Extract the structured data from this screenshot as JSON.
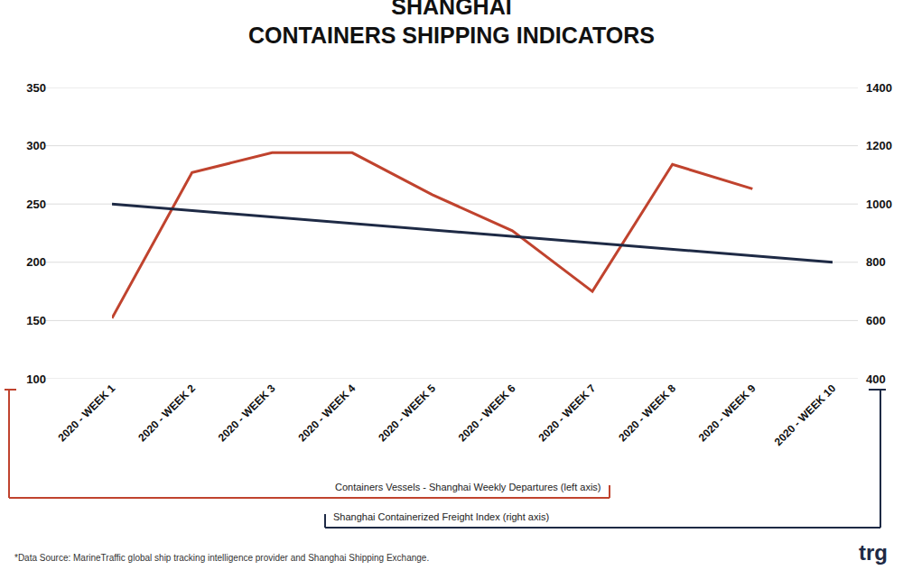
{
  "chart_data": {
    "type": "line",
    "title": "SHANGHAI\nCONTAINERS SHIPPING INDICATORS",
    "categories": [
      "2020 - WEEK 1",
      "2020 - WEEK 2",
      "2020 - WEEK 3",
      "2020 - WEEK 4",
      "2020 - WEEK 5",
      "2020 - WEEK 6",
      "2020 - WEEK 7",
      "2020 - WEEK 8",
      "2020 - WEEK 9",
      "2020 - WEEK 10"
    ],
    "series": [
      {
        "name": "Containers Vessels - Shanghai Weekly Departures (left axis)",
        "color": "#c0432e",
        "values": [
          152,
          277,
          294,
          294,
          258,
          227,
          175,
          284,
          263,
          null
        ]
      },
      {
        "name": "Shanghai Containerized Freight Index (right axis)",
        "color": "#1e2a45",
        "axis": "y2",
        "values": [
          1000,
          978,
          956,
          933,
          911,
          889,
          867,
          844,
          822,
          800
        ]
      }
    ],
    "ylim": [
      100,
      350
    ],
    "yticks": [
      100,
      150,
      200,
      250,
      300,
      350
    ],
    "y2lim": [
      400,
      1400
    ],
    "y2ticks": [
      400,
      600,
      800,
      1000,
      1200,
      1400
    ],
    "grid": true,
    "annotations": [
      "*Data Source: MarineTraffic global ship tracking intelligence provider and Shanghai Shipping Exchange.",
      "trg"
    ]
  }
}
